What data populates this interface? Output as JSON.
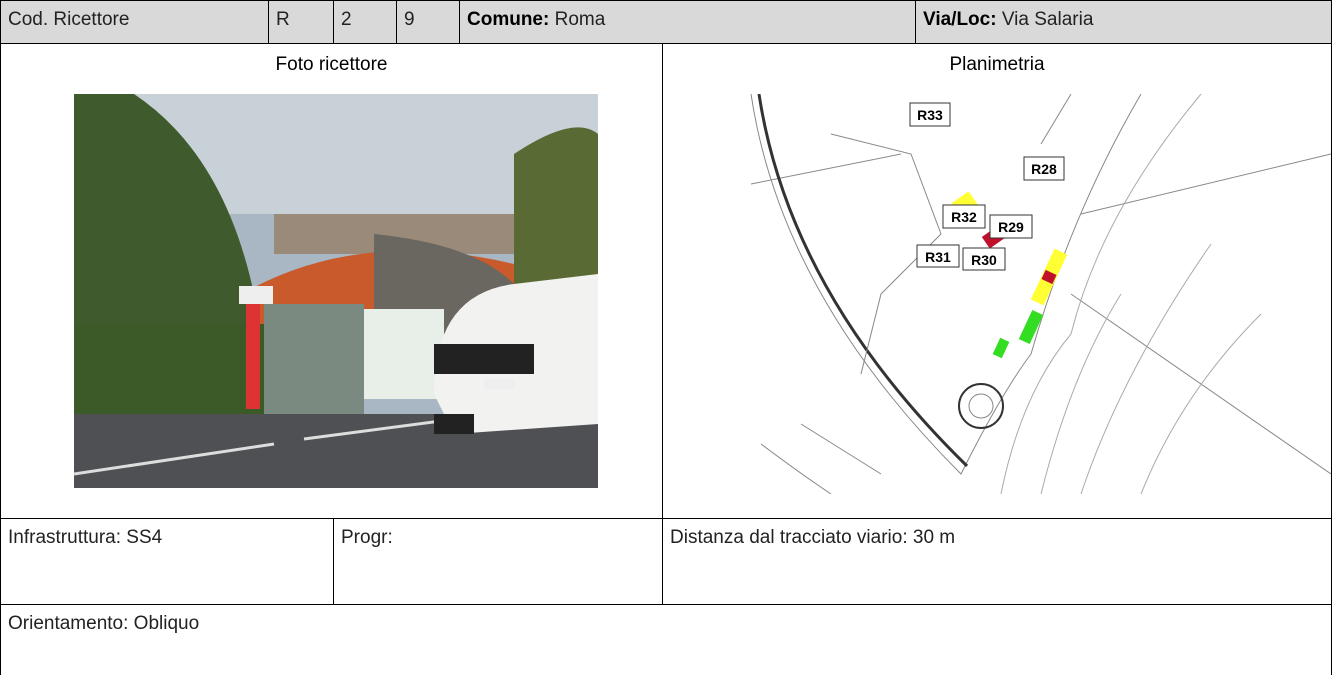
{
  "header": {
    "code_label": "Cod. Ricettore",
    "code": [
      "R",
      "2",
      "9"
    ],
    "comune_label": "Comune:",
    "comune": "Roma",
    "via_label": "Via/Loc:",
    "via": "Via Salaria"
  },
  "photo": {
    "title": "Foto ricettore"
  },
  "plan": {
    "title": "Planimetria",
    "labels": [
      "R33",
      "R28",
      "R32",
      "R29",
      "R31",
      "R30"
    ]
  },
  "details": {
    "infrastruttura": "Infrastruttura: SS4",
    "progr": "Progr:",
    "distanza": "Distanza dal tracciato viario: 30 m",
    "orientamento": "Orientamento: Obliquo"
  }
}
